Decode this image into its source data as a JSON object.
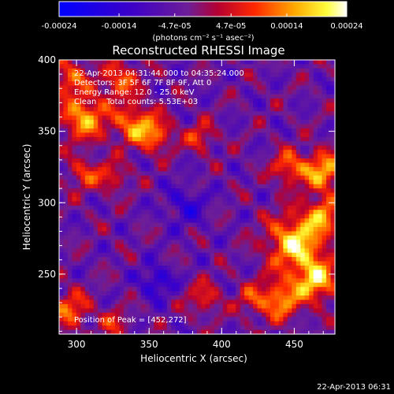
{
  "colorbar": {
    "ticks": [
      "-0.00024",
      "-0.00014",
      "-4.7e-05",
      "4.7e-05",
      "0.00014",
      "0.00024"
    ],
    "unit_label": "(photons cm⁻² s⁻¹ asec⁻²)"
  },
  "chart_data": {
    "type": "heatmap",
    "title": "Reconstructed RHESSI Image",
    "xlabel": "Heliocentric X (arcsec)",
    "ylabel": "Heliocentric Y (arcsec)",
    "xlim": [
      288,
      478
    ],
    "ylim": [
      208,
      400
    ],
    "xticks": [
      "300",
      "350",
      "400",
      "450"
    ],
    "yticks": [
      "250",
      "300",
      "350",
      "400"
    ],
    "zlim": [
      -0.00024,
      0.00024
    ],
    "colormap": "rhessi: blue-purple-red-orange-yellow-white",
    "info_lines": [
      "22-Apr-2013 04:31:44.000 to 04:35:24.000",
      "Detectors: 3F 5F 6F 7F 8F 9F, Att 0",
      "Energy Range: 12.0 - 25.0 keV",
      "Clean    Total counts: 5.53E+03"
    ],
    "peak_label": "Position of Peak = [452,272]",
    "peak": [
      452,
      272
    ],
    "sources": [
      {
        "x": 452,
        "y": 272,
        "amp": 0.00024,
        "sigma": 14
      },
      {
        "x": 465,
        "y": 245,
        "amp": 0.00021,
        "sigma": 10
      },
      {
        "x": 440,
        "y": 232,
        "amp": 0.00018,
        "sigma": 10
      },
      {
        "x": 470,
        "y": 322,
        "amp": 0.0002,
        "sigma": 10
      },
      {
        "x": 446,
        "y": 325,
        "amp": 0.00015,
        "sigma": 8
      },
      {
        "x": 470,
        "y": 292,
        "amp": 0.00016,
        "sigma": 8
      },
      {
        "x": 305,
        "y": 360,
        "amp": 0.0002,
        "sigma": 11
      },
      {
        "x": 340,
        "y": 355,
        "amp": 0.00017,
        "sigma": 10
      },
      {
        "x": 330,
        "y": 386,
        "amp": 0.00015,
        "sigma": 9
      },
      {
        "x": 295,
        "y": 388,
        "amp": 0.00014,
        "sigma": 9
      },
      {
        "x": 355,
        "y": 347,
        "amp": 0.00014,
        "sigma": 8
      },
      {
        "x": 385,
        "y": 346,
        "amp": 0.00012,
        "sigma": 7
      },
      {
        "x": 305,
        "y": 320,
        "amp": 0.00012,
        "sigma": 8
      },
      {
        "x": 325,
        "y": 318,
        "amp": 0.00011,
        "sigma": 7
      },
      {
        "x": 296,
        "y": 225,
        "amp": 0.00015,
        "sigma": 9
      },
      {
        "x": 326,
        "y": 215,
        "amp": 0.0001,
        "sigma": 7
      },
      {
        "x": 388,
        "y": 233,
        "amp": 0.00011,
        "sigma": 8
      },
      {
        "x": 420,
        "y": 232,
        "amp": 0.0001,
        "sigma": 7
      },
      {
        "x": 355,
        "y": 245,
        "amp": -0.00012,
        "sigma": 8
      },
      {
        "x": 375,
        "y": 298,
        "amp": -9e-05,
        "sigma": 10
      }
    ]
  },
  "footer": {
    "timestamp": "22-Apr-2013 06:31"
  }
}
